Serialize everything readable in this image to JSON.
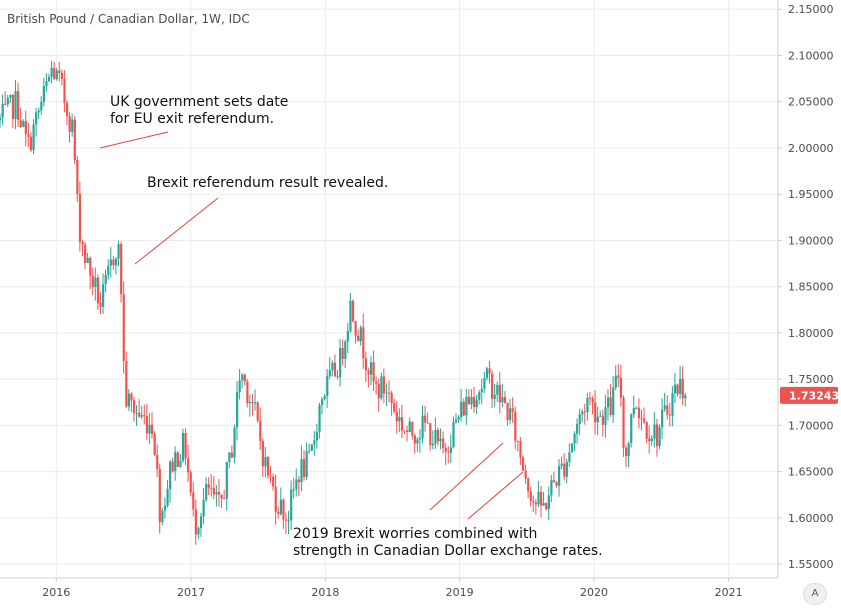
{
  "title": "British Pound / Canadian Dollar, 1W, IDC",
  "scale_button": "A",
  "colors": {
    "up": "#26a69a",
    "down": "#ef5350",
    "grid": "#ececec",
    "axis": "#d0d0d0",
    "price_label_bg": "#ef5350",
    "annotation_line": "#e8413a"
  },
  "chart_data": {
    "type": "candlestick",
    "title": "British Pound / Canadian Dollar, 1W, IDC",
    "xlabel": "",
    "ylabel": "",
    "ylim": [
      1.535,
      2.16
    ],
    "xlim": [
      "2015-08-01",
      "2021-05-15"
    ],
    "grid": true,
    "y_ticks": [
      "2.15000",
      "2.10000",
      "2.05000",
      "2.00000",
      "1.95000",
      "1.90000",
      "1.85000",
      "1.80000",
      "1.75000",
      "1.70000",
      "1.65000",
      "1.60000",
      "1.55000"
    ],
    "x_ticks": [
      {
        "date": "2016-01-01",
        "label": "2016"
      },
      {
        "date": "2017-01-01",
        "label": "2017"
      },
      {
        "date": "2018-01-01",
        "label": "2018"
      },
      {
        "date": "2019-01-01",
        "label": "2019"
      },
      {
        "date": "2020-01-01",
        "label": "2020"
      },
      {
        "date": "2021-01-01",
        "label": "2021"
      }
    ],
    "last_price": "1.73243",
    "series": {
      "start_date": "2015-08-01",
      "close_anchors": [
        [
          "2015-08-01",
          2.03
        ],
        [
          "2015-09-15",
          2.05
        ],
        [
          "2015-10-15",
          2.0
        ],
        [
          "2015-11-15",
          2.04
        ],
        [
          "2015-12-20",
          2.085
        ],
        [
          "2016-01-10",
          2.07
        ],
        [
          "2016-02-15",
          2.02
        ],
        [
          "2016-03-01",
          1.92
        ],
        [
          "2016-03-20",
          1.88
        ],
        [
          "2016-05-01",
          1.83
        ],
        [
          "2016-06-15",
          1.9
        ],
        [
          "2016-06-24",
          1.86
        ],
        [
          "2016-07-05",
          1.73
        ],
        [
          "2016-08-15",
          1.71
        ],
        [
          "2016-09-20",
          1.7
        ],
        [
          "2016-10-10",
          1.6
        ],
        [
          "2016-11-10",
          1.66
        ],
        [
          "2016-12-15",
          1.68
        ],
        [
          "2017-01-10",
          1.59
        ],
        [
          "2017-02-15",
          1.63
        ],
        [
          "2017-03-20",
          1.61
        ],
        [
          "2017-04-20",
          1.67
        ],
        [
          "2017-05-15",
          1.76
        ],
        [
          "2017-06-20",
          1.72
        ],
        [
          "2017-07-20",
          1.66
        ],
        [
          "2017-08-20",
          1.62
        ],
        [
          "2017-09-20",
          1.6
        ],
        [
          "2017-10-20",
          1.65
        ],
        [
          "2017-11-20",
          1.66
        ],
        [
          "2017-12-20",
          1.73
        ],
        [
          "2018-02-10",
          1.77
        ],
        [
          "2018-03-10",
          1.83
        ],
        [
          "2018-04-10",
          1.79
        ],
        [
          "2018-05-15",
          1.74
        ],
        [
          "2018-06-15",
          1.74
        ],
        [
          "2018-07-15",
          1.71
        ],
        [
          "2018-08-15",
          1.69
        ],
        [
          "2018-10-01",
          1.7
        ],
        [
          "2018-11-15",
          1.67
        ],
        [
          "2019-01-10",
          1.72
        ],
        [
          "2019-02-20",
          1.74
        ],
        [
          "2019-03-20",
          1.75
        ],
        [
          "2019-04-20",
          1.73
        ],
        [
          "2019-05-20",
          1.71
        ],
        [
          "2019-06-20",
          1.66
        ],
        [
          "2019-07-20",
          1.62
        ],
        [
          "2019-08-15",
          1.61
        ],
        [
          "2019-09-15",
          1.64
        ],
        [
          "2019-10-15",
          1.66
        ],
        [
          "2019-11-15",
          1.7
        ],
        [
          "2019-12-15",
          1.73
        ],
        [
          "2020-01-15",
          1.71
        ],
        [
          "2020-02-15",
          1.72
        ],
        [
          "2020-03-10",
          1.76
        ],
        [
          "2020-03-25",
          1.66
        ],
        [
          "2020-04-20",
          1.73
        ],
        [
          "2020-05-20",
          1.7
        ],
        [
          "2020-06-20",
          1.69
        ],
        [
          "2020-07-20",
          1.72
        ],
        [
          "2020-08-10",
          1.74
        ],
        [
          "2020-08-25",
          1.745
        ],
        [
          "2020-09-05",
          1.73243
        ]
      ]
    },
    "annotations": [
      {
        "lines": [
          "UK government sets date",
          "for EU exit referendum."
        ]
      },
      {
        "lines": [
          "Brexit referendum result revealed."
        ]
      },
      {
        "lines": [
          "2019 Brexit worries combined with",
          "strength in Canadian Dollar exchange rates."
        ]
      }
    ]
  }
}
